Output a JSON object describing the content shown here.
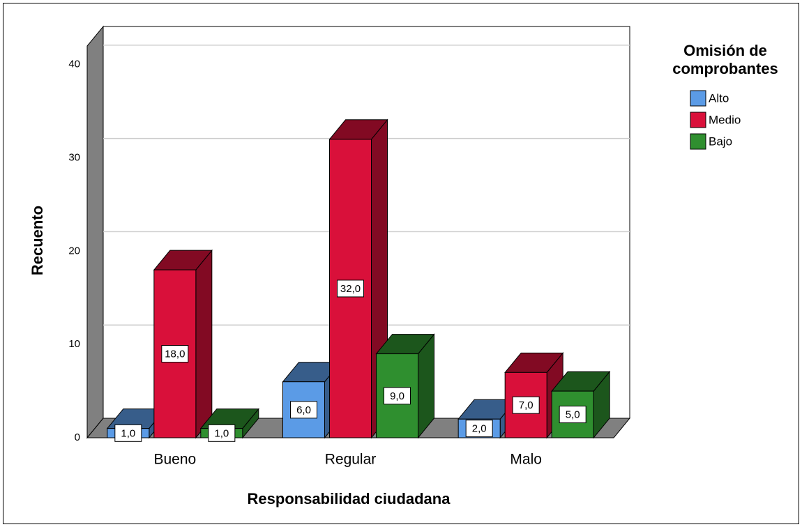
{
  "chart_data": {
    "type": "bar3d",
    "x_label": "Responsabilidad ciudadana",
    "y_label": "Recuento",
    "legend_title": "Omisión de comprobantes",
    "categories": [
      "Bueno",
      "Regular",
      "Malo"
    ],
    "series": [
      {
        "name": "Alto",
        "color": "#5b9be6",
        "values": [
          1,
          6,
          2
        ],
        "value_labels": [
          "1,0",
          "6,0",
          "2,0"
        ]
      },
      {
        "name": "Medio",
        "color": "#d9103a",
        "values": [
          18,
          32,
          7
        ],
        "value_labels": [
          "18,0",
          "32,0",
          "7,0"
        ]
      },
      {
        "name": "Bajo",
        "color": "#2f8f2f",
        "values": [
          1,
          9,
          5
        ],
        "value_labels": [
          "1,0",
          "9,0",
          "5,0"
        ]
      }
    ],
    "ylim": [
      0,
      42
    ],
    "yticks": [
      0,
      10,
      20,
      30,
      40
    ],
    "grid": true,
    "legend": "right"
  }
}
